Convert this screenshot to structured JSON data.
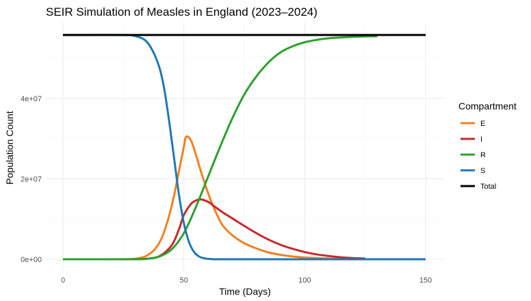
{
  "chart_data": {
    "type": "line",
    "title": "SEIR Simulation of Measles in England (2023–2024)",
    "xlabel": "Time (Days)",
    "ylabel": "Population Count",
    "xlim": [
      0,
      150
    ],
    "ylim": [
      0,
      56000000
    ],
    "x_ticks": [
      0,
      50,
      100,
      150
    ],
    "x_tick_labels": [
      "0",
      "50",
      "100",
      "150"
    ],
    "y_ticks": [
      0,
      20000000,
      40000000
    ],
    "y_tick_labels": [
      "0e+00",
      "2e+07",
      "4e+07"
    ],
    "grid": true,
    "legend_title": "Compartment",
    "legend_position": "right",
    "series": [
      {
        "name": "E",
        "color": "#f28020",
        "x": [
          0,
          20,
          25,
          30,
          34,
          38,
          41,
          44,
          46,
          48,
          50,
          51,
          53,
          55,
          57,
          60,
          63,
          66,
          70,
          75,
          80,
          85,
          90,
          95,
          100,
          110,
          120,
          125
        ],
        "y": [
          0,
          0,
          10000,
          150000,
          700000,
          2500000,
          5500000,
          11000000,
          16000000,
          22000000,
          28000000,
          30500000,
          29500000,
          26000000,
          22000000,
          16500000,
          12000000,
          8500000,
          6000000,
          4000000,
          2700000,
          1700000,
          1100000,
          700000,
          450000,
          180000,
          70000,
          40000
        ]
      },
      {
        "name": "I",
        "color": "#c8282a",
        "x": [
          0,
          25,
          30,
          35,
          40,
          45,
          48,
          50,
          53,
          55,
          57,
          60,
          63,
          66,
          70,
          75,
          80,
          85,
          90,
          95,
          100,
          105,
          110,
          115,
          120,
          125
        ],
        "y": [
          0,
          0,
          20000,
          150000,
          800000,
          3500000,
          7500000,
          11000000,
          13800000,
          14600000,
          14900000,
          14300000,
          13000000,
          11700000,
          10200000,
          8300000,
          6500000,
          4900000,
          3600000,
          2600000,
          1800000,
          1200000,
          800000,
          500000,
          300000,
          200000
        ]
      },
      {
        "name": "R",
        "color": "#2ca02c",
        "x": [
          0,
          30,
          35,
          40,
          45,
          50,
          55,
          60,
          65,
          70,
          75,
          80,
          85,
          90,
          95,
          100,
          105,
          110,
          115,
          120,
          125,
          130
        ],
        "y": [
          0,
          20000,
          150000,
          700000,
          2500000,
          6500000,
          13000000,
          20500000,
          28000000,
          35000000,
          41000000,
          45500000,
          49000000,
          51500000,
          53000000,
          54000000,
          54600000,
          55000000,
          55200000,
          55350000,
          55450000,
          55500000
        ]
      },
      {
        "name": "S",
        "color": "#1f77b4",
        "x": [
          0,
          25,
          30,
          34,
          37,
          40,
          42,
          44,
          46,
          48,
          50,
          52,
          54,
          56,
          58,
          60,
          62,
          65,
          70,
          100,
          150
        ],
        "y": [
          55800000,
          55800000,
          55500000,
          54500000,
          52000000,
          47500000,
          42000000,
          34000000,
          25000000,
          16000000,
          9000000,
          4500000,
          2000000,
          800000,
          300000,
          100000,
          30000,
          0,
          0,
          0,
          0
        ]
      },
      {
        "name": "Total",
        "color": "#000000",
        "x": [
          0,
          150
        ],
        "y": [
          55800000,
          55800000
        ]
      }
    ]
  }
}
